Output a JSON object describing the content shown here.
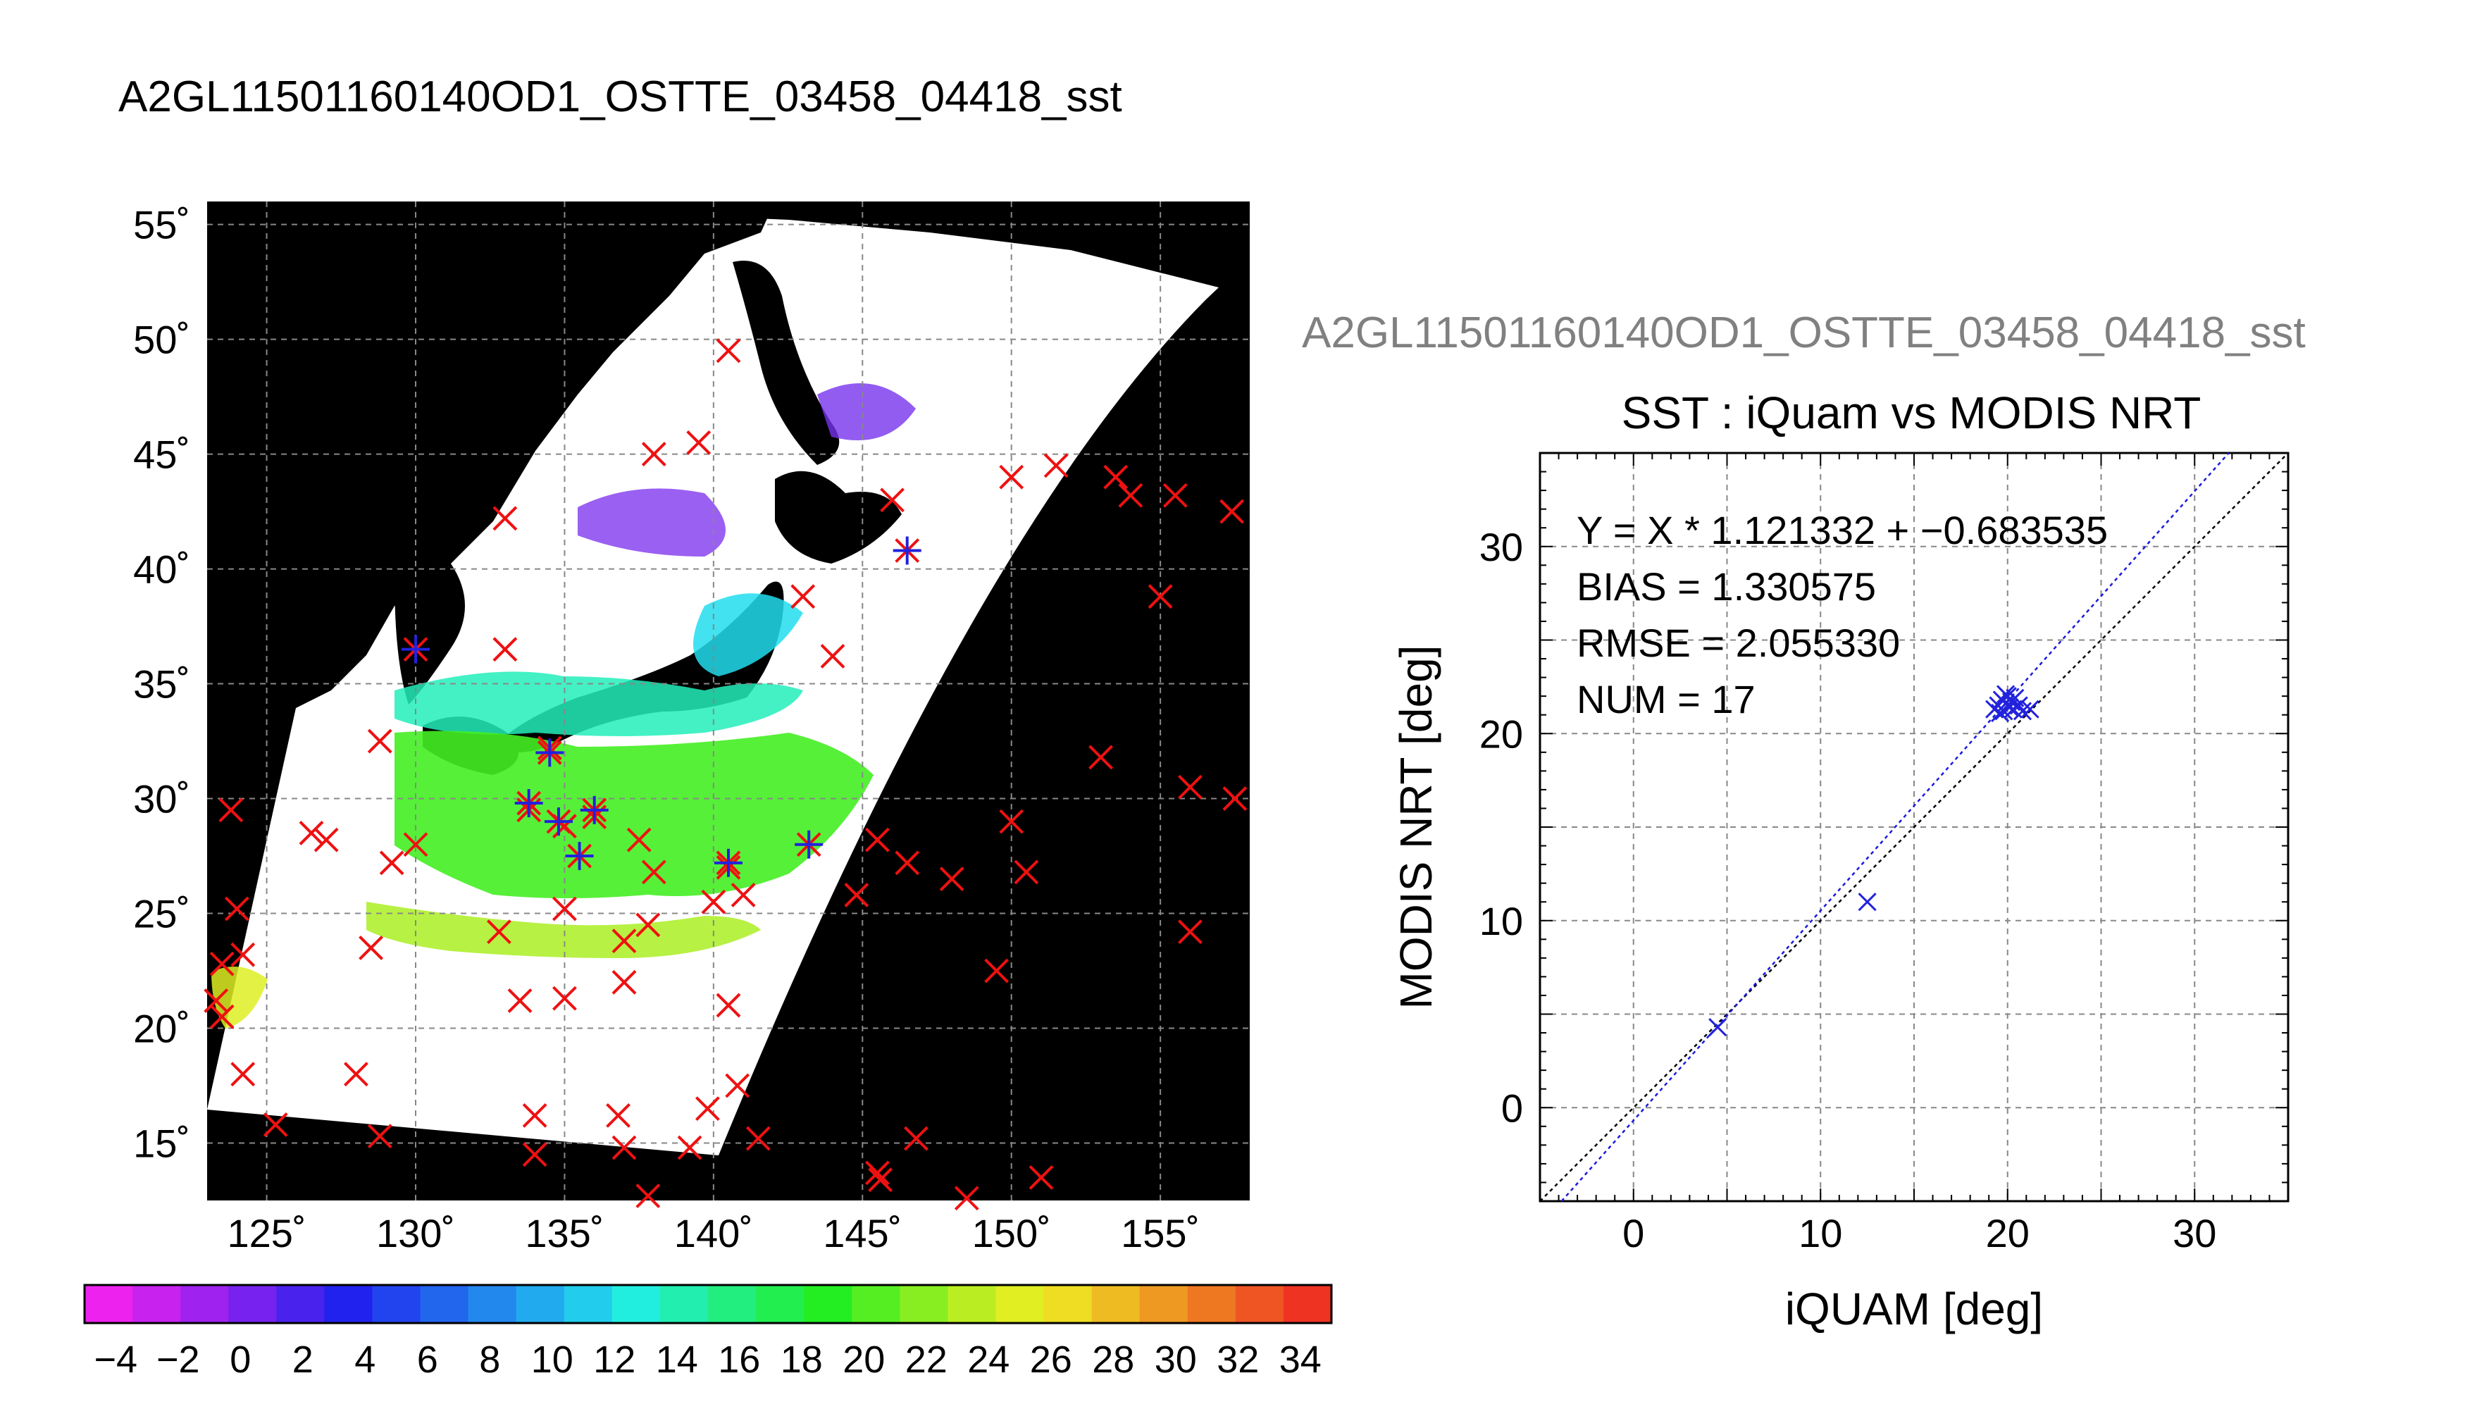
{
  "main_title": "A2GL11501160140OD1_OSTTE_03458_04418_sst",
  "chart_data": [
    {
      "type": "heatmap",
      "lat_ticks": [
        "55˚",
        "50˚",
        "45˚",
        "40˚",
        "35˚",
        "30˚",
        "25˚",
        "20˚",
        "15˚"
      ],
      "lat_values": [
        55,
        50,
        45,
        40,
        35,
        30,
        25,
        20,
        15
      ],
      "lon_ticks": [
        "125˚",
        "130˚",
        "135˚",
        "140˚",
        "145˚",
        "150˚",
        "155˚"
      ],
      "lon_values": [
        125,
        130,
        135,
        140,
        145,
        150,
        155
      ],
      "lon_range": [
        123,
        158
      ],
      "lat_range": [
        12.5,
        56
      ],
      "grid": true,
      "colorbar": {
        "tick_labels": [
          "−4",
          "−2",
          "0",
          "2",
          "4",
          "6",
          "8",
          "10",
          "12",
          "14",
          "16",
          "18",
          "20",
          "22",
          "24",
          "26",
          "28",
          "30",
          "32",
          "34"
        ],
        "range": [
          -5,
          35
        ],
        "colors": [
          "#ee22ee",
          "#c722ee",
          "#a022ee",
          "#7722ee",
          "#4a22ee",
          "#2222ee",
          "#2244ee",
          "#2266ee",
          "#2288ee",
          "#22aaee",
          "#22cced",
          "#22eee0",
          "#22eeb0",
          "#22ee80",
          "#22ee50",
          "#22ee22",
          "#55ee22",
          "#88ee22",
          "#bbee22",
          "#e0ee22",
          "#eedd22",
          "#eebb22",
          "#ee9922",
          "#ee7722",
          "#ee5522",
          "#ee3322"
        ]
      },
      "markers": {
        "red_x": [
          [
            133,
            42.2
          ],
          [
            138,
            45
          ],
          [
            139.5,
            45.5
          ],
          [
            140.5,
            49.5
          ],
          [
            146,
            43
          ],
          [
            150,
            44
          ],
          [
            151.5,
            44.5
          ],
          [
            153.5,
            44
          ],
          [
            154,
            43.2
          ],
          [
            155.5,
            43.2
          ],
          [
            157.4,
            42.5
          ],
          [
            143,
            38.8
          ],
          [
            144,
            36.2
          ],
          [
            133,
            36.5
          ],
          [
            155,
            38.8
          ],
          [
            128.8,
            32.5
          ],
          [
            134.5,
            32.2
          ],
          [
            153,
            31.8
          ],
          [
            123.8,
            29.5
          ],
          [
            126.5,
            28.5
          ],
          [
            127,
            28.2
          ],
          [
            129.2,
            27.2
          ],
          [
            130,
            28
          ],
          [
            133.8,
            29.5
          ],
          [
            135,
            28.8
          ],
          [
            136,
            29.2
          ],
          [
            137.5,
            28.2
          ],
          [
            140.5,
            27
          ],
          [
            145.5,
            28.2
          ],
          [
            146.5,
            27.2
          ],
          [
            150,
            29
          ],
          [
            156,
            30.5
          ],
          [
            157.5,
            30
          ],
          [
            138,
            26.8
          ],
          [
            140,
            25.5
          ],
          [
            141,
            25.8
          ],
          [
            135,
            25.2
          ],
          [
            132.8,
            24.2
          ],
          [
            137.8,
            24.5
          ],
          [
            137,
            23.8
          ],
          [
            144.8,
            25.8
          ],
          [
            148,
            26.5
          ],
          [
            150.5,
            26.8
          ],
          [
            156,
            24.2
          ],
          [
            124,
            25.2
          ],
          [
            123.5,
            22.8
          ],
          [
            124.2,
            23.2
          ],
          [
            123.3,
            21.2
          ],
          [
            128.5,
            23.5
          ],
          [
            133.5,
            21.2
          ],
          [
            135,
            21.3
          ],
          [
            137,
            22
          ],
          [
            140.5,
            21
          ],
          [
            149.5,
            22.5
          ],
          [
            123.5,
            20.5
          ],
          [
            124.2,
            18
          ],
          [
            128,
            18
          ],
          [
            125.3,
            15.8
          ],
          [
            128.8,
            15.3
          ],
          [
            134,
            16.2
          ],
          [
            136.8,
            16.2
          ],
          [
            139.8,
            16.5
          ],
          [
            140.8,
            17.5
          ],
          [
            134,
            14.5
          ],
          [
            137,
            14.8
          ],
          [
            139.2,
            14.8
          ],
          [
            141.5,
            15.2
          ],
          [
            145.5,
            13.7
          ],
          [
            146.8,
            15.2
          ],
          [
            145.6,
            13.4
          ],
          [
            148.5,
            12.6
          ],
          [
            151,
            13.5
          ],
          [
            137.8,
            12.7
          ]
        ],
        "blue_star": [
          [
            130,
            36.5
          ],
          [
            134.5,
            32
          ],
          [
            133.8,
            29.8
          ],
          [
            134.8,
            29
          ],
          [
            136,
            29.5
          ],
          [
            135.5,
            27.5
          ],
          [
            140.5,
            27.2
          ],
          [
            143.2,
            28
          ],
          [
            146.5,
            40.8
          ]
        ]
      }
    },
    {
      "type": "scatter",
      "panel_title": "A2GL11501160140OD1_OSTTE_03458_04418_sst",
      "title": "SST : iQuam vs MODIS NRT",
      "xlabel": "iQUAM [deg]",
      "ylabel": "MODIS NRT [deg]",
      "xlim": [
        -5,
        35
      ],
      "ylim": [
        -5,
        35
      ],
      "x_ticks": [
        "0",
        "10",
        "20",
        "30"
      ],
      "y_ticks": [
        "0",
        "10",
        "20",
        "30"
      ],
      "tick_values": [
        0,
        10,
        20,
        30
      ],
      "grid": true,
      "stats": [
        "Y = X * 1.121332 + −0.683535",
        "BIAS = 1.330575",
        "RMSE = 2.055330",
        "NUM = 17"
      ],
      "fit": {
        "slope": 1.121332,
        "intercept": -0.683535
      },
      "points": [
        [
          4.5,
          4.3
        ],
        [
          12.5,
          11.0
        ],
        [
          19.3,
          21.3
        ],
        [
          19.5,
          21.5
        ],
        [
          19.7,
          21.8
        ],
        [
          19.8,
          21.2
        ],
        [
          19.9,
          21.6
        ],
        [
          20.0,
          22.0
        ],
        [
          20.1,
          21.4
        ],
        [
          20.2,
          21.7
        ],
        [
          20.3,
          21.3
        ],
        [
          20.4,
          21.9
        ],
        [
          19.6,
          21.1
        ],
        [
          20.6,
          21.5
        ],
        [
          20.8,
          21.2
        ],
        [
          21.2,
          21.3
        ],
        [
          19.9,
          22.1
        ]
      ],
      "point_color": "#2222dd",
      "fit_color": "#1a1ae0",
      "identity_color": "#000000"
    }
  ]
}
